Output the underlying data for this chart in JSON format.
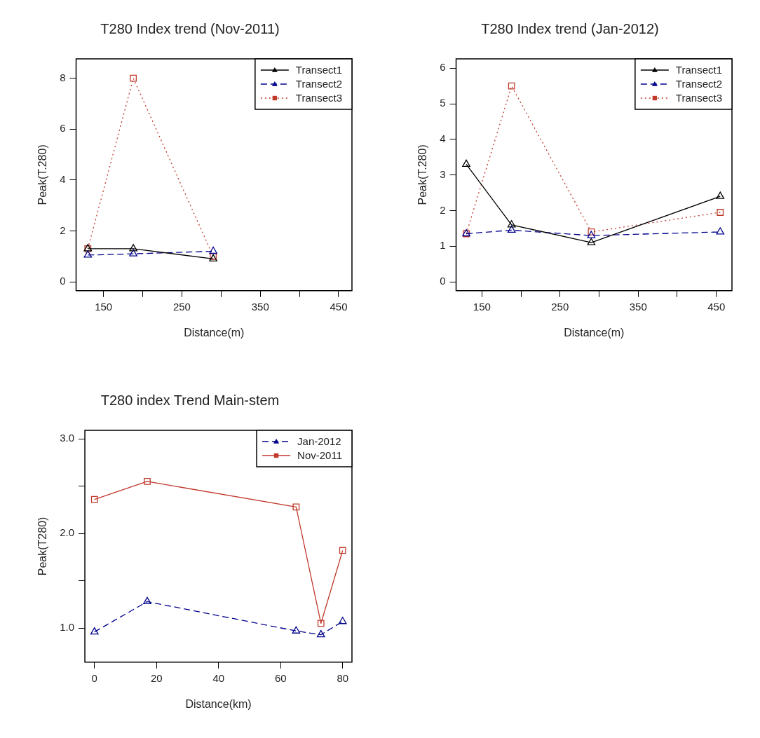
{
  "chart_data": [
    {
      "type": "line",
      "title": "T280 Index trend (Nov-2011)",
      "xlabel": "Distance(m)",
      "ylabel": "Peak(T.280)",
      "x": [
        130,
        188,
        290
      ],
      "xlim": [
        115,
        467
      ],
      "xticks": [
        150,
        {
          "value": 200,
          "label": null
        },
        250,
        {
          "value": 300,
          "label": null
        },
        350,
        {
          "value": 400,
          "label": null
        },
        450
      ],
      "ylim": [
        -0.35,
        8.76
      ],
      "yticks": [
        0,
        2,
        4,
        6,
        8
      ],
      "grid": false,
      "legend": "top right",
      "series": [
        {
          "name": "Transect1",
          "color": "#000000",
          "line_style": "solid",
          "marker": "triangle",
          "values": [
            1.3,
            1.3,
            0.9
          ]
        },
        {
          "name": "Transect2",
          "color": "#00008b",
          "line_style": "dashed",
          "marker": "triangle",
          "values": [
            1.05,
            1.1,
            1.2
          ]
        },
        {
          "name": "Transect3",
          "color": "#c0392b",
          "line_style": "dotted",
          "marker": "square",
          "values": [
            1.3,
            8.0,
            1.0
          ]
        }
      ]
    },
    {
      "type": "line",
      "title": "T280 Index trend (Jan-2012)",
      "xlabel": "Distance(m)",
      "ylabel": "Peak(T.280)",
      "x": [
        130,
        188,
        290,
        455
      ],
      "xlim": [
        117,
        470
      ],
      "xticks": [
        150,
        {
          "value": 200,
          "label": null
        },
        250,
        {
          "value": 300,
          "label": null
        },
        350,
        {
          "value": 400,
          "label": null
        },
        450
      ],
      "ylim": [
        -0.25,
        6.26
      ],
      "yticks": [
        0,
        1,
        2,
        3,
        4,
        5,
        6
      ],
      "grid": false,
      "legend": "top right",
      "series": [
        {
          "name": "Transect1",
          "color": "#000000",
          "line_style": "solid",
          "marker": "triangle",
          "values": [
            3.3,
            1.6,
            1.1,
            2.4
          ]
        },
        {
          "name": "Transect2",
          "color": "#00008b",
          "line_style": "dashed",
          "marker": "triangle",
          "values": [
            1.35,
            1.45,
            1.3,
            1.4
          ]
        },
        {
          "name": "Transect3",
          "color": "#c0392b",
          "line_style": "dotted",
          "marker": "square",
          "values": [
            1.35,
            5.5,
            1.4,
            1.95
          ]
        }
      ]
    },
    {
      "type": "line",
      "title": "T280 index Trend Main-stem",
      "xlabel": "Distance(km)",
      "ylabel": "Peak(T280)",
      "x": [
        0,
        17,
        65,
        73,
        80
      ],
      "xlim": [
        -3.1,
        83
      ],
      "xticks": [
        0,
        20,
        40,
        60,
        80
      ],
      "ylim": [
        0.64,
        3.09
      ],
      "yticks": [
        {
          "value": 1,
          "label": "1.0"
        },
        {
          "value": 1.5,
          "label": null
        },
        {
          "value": 2,
          "label": "2.0"
        },
        {
          "value": 2.5,
          "label": null
        },
        {
          "value": 3,
          "label": "3.0"
        }
      ],
      "grid": false,
      "legend": "top right",
      "series": [
        {
          "name": "Jan-2012",
          "color": "#00008b",
          "line_style": "dashed",
          "marker": "triangle",
          "values": [
            0.96,
            1.28,
            0.97,
            0.93,
            1.07
          ]
        },
        {
          "name": "Nov-2011",
          "color": "#c0392b",
          "line_style": "solid",
          "marker": "square",
          "values": [
            2.36,
            2.55,
            2.28,
            1.05,
            1.82
          ]
        }
      ]
    }
  ]
}
